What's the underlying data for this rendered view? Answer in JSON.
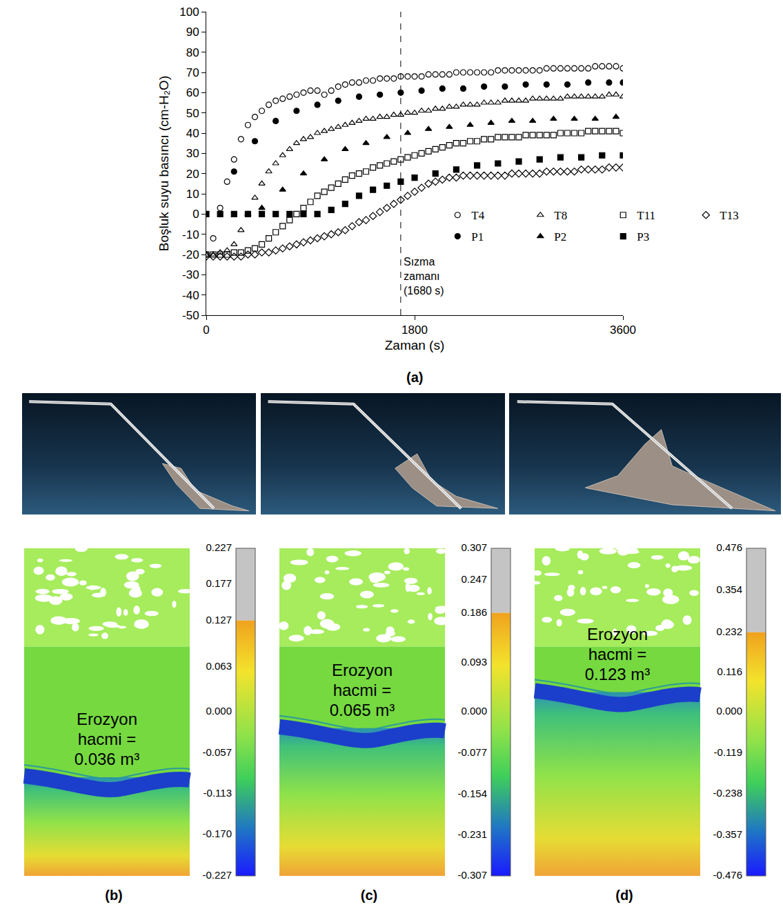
{
  "chart_data": {
    "type": "scatter",
    "x_label": "Zaman (s)",
    "y_label": "Boşluk suyu basıncı (cm-H₂O)",
    "panel_label": "(a)",
    "xlim": [
      0,
      3600
    ],
    "xticks": [
      0,
      1800,
      3600
    ],
    "ylim": [
      -50,
      100
    ],
    "yticks": [
      -50,
      -40,
      -30,
      -20,
      -10,
      0,
      10,
      20,
      30,
      40,
      50,
      60,
      70,
      80,
      90,
      100
    ],
    "grid": false,
    "legend": "lower right",
    "vline": {
      "x": 1680,
      "line_style": "dash",
      "label": [
        "Sızma",
        "zamanı",
        "(1680 s)"
      ]
    },
    "series": [
      {
        "name": "T4",
        "color": "#000000",
        "marker": "circle-open",
        "x": [
          0,
          60,
          120,
          180,
          240,
          300,
          360,
          420,
          480,
          540,
          600,
          660,
          720,
          780,
          840,
          900,
          960,
          1020,
          1080,
          1140,
          1200,
          1260,
          1320,
          1380,
          1440,
          1500,
          1560,
          1620,
          1680,
          1740,
          1800,
          1860,
          1920,
          1980,
          2040,
          2100,
          2160,
          2220,
          2280,
          2340,
          2400,
          2460,
          2520,
          2580,
          2640,
          2700,
          2760,
          2820,
          2880,
          2940,
          3000,
          3060,
          3120,
          3180,
          3240,
          3300,
          3360,
          3420,
          3480,
          3540,
          3600
        ],
        "values": [
          -20,
          -12,
          3,
          16,
          27,
          37,
          44,
          48,
          51,
          54,
          56,
          57,
          58,
          59,
          60,
          61,
          61,
          59,
          61,
          63,
          64,
          65,
          65,
          66,
          66,
          67,
          67,
          67,
          68,
          68,
          68,
          68,
          69,
          69,
          69,
          69,
          70,
          70,
          70,
          70,
          70,
          70,
          71,
          71,
          71,
          71,
          71,
          71,
          71,
          72,
          72,
          72,
          72,
          72,
          72,
          72,
          73,
          73,
          73,
          73,
          72
        ]
      },
      {
        "name": "T8",
        "color": "#000000",
        "marker": "triangle-up-open",
        "x": [
          0,
          60,
          120,
          180,
          240,
          300,
          360,
          420,
          480,
          540,
          600,
          660,
          720,
          780,
          840,
          900,
          960,
          1020,
          1080,
          1140,
          1200,
          1260,
          1320,
          1380,
          1440,
          1500,
          1560,
          1620,
          1680,
          1740,
          1800,
          1860,
          1920,
          1980,
          2040,
          2100,
          2160,
          2220,
          2280,
          2340,
          2400,
          2460,
          2520,
          2580,
          2640,
          2700,
          2760,
          2820,
          2880,
          2940,
          3000,
          3060,
          3120,
          3180,
          3240,
          3300,
          3360,
          3420,
          3480,
          3540,
          3600
        ],
        "values": [
          -20,
          -20,
          -19,
          -18,
          -15,
          -8,
          0,
          8,
          15,
          21,
          25,
          29,
          32,
          35,
          37,
          38,
          40,
          41,
          42,
          43,
          44,
          45,
          46,
          47,
          47,
          48,
          48,
          49,
          49,
          50,
          50,
          51,
          51,
          52,
          52,
          53,
          53,
          54,
          54,
          54,
          55,
          55,
          55,
          56,
          56,
          56,
          56,
          57,
          57,
          57,
          57,
          57,
          58,
          58,
          58,
          58,
          58,
          58,
          59,
          59,
          58
        ]
      },
      {
        "name": "T11",
        "color": "#000000",
        "marker": "square-open",
        "x": [
          0,
          60,
          120,
          180,
          240,
          300,
          360,
          420,
          480,
          540,
          600,
          660,
          720,
          780,
          840,
          900,
          960,
          1020,
          1080,
          1140,
          1200,
          1260,
          1320,
          1380,
          1440,
          1500,
          1560,
          1620,
          1680,
          1740,
          1800,
          1860,
          1920,
          1980,
          2040,
          2100,
          2160,
          2220,
          2280,
          2340,
          2400,
          2460,
          2520,
          2580,
          2640,
          2700,
          2760,
          2820,
          2880,
          2940,
          3000,
          3060,
          3120,
          3180,
          3240,
          3300,
          3360,
          3420,
          3480,
          3540,
          3600
        ],
        "values": [
          -20,
          -20,
          -20,
          -20,
          -19,
          -19,
          -18,
          -17,
          -15,
          -12,
          -9,
          -6,
          -3,
          0,
          3,
          6,
          9,
          11,
          13,
          15,
          17,
          19,
          20,
          21,
          23,
          24,
          25,
          26,
          27,
          28,
          29,
          30,
          31,
          32,
          33,
          34,
          35,
          35,
          36,
          36,
          37,
          37,
          38,
          38,
          38,
          38,
          39,
          39,
          39,
          39,
          39,
          40,
          40,
          40,
          40,
          41,
          41,
          41,
          41,
          41,
          40
        ]
      },
      {
        "name": "T13",
        "color": "#000000",
        "marker": "diamond-open",
        "x": [
          0,
          60,
          120,
          180,
          240,
          300,
          360,
          420,
          480,
          540,
          600,
          660,
          720,
          780,
          840,
          900,
          960,
          1020,
          1080,
          1140,
          1200,
          1260,
          1320,
          1380,
          1440,
          1500,
          1560,
          1620,
          1680,
          1740,
          1800,
          1860,
          1920,
          1980,
          2040,
          2100,
          2160,
          2220,
          2280,
          2340,
          2400,
          2460,
          2520,
          2580,
          2640,
          2700,
          2760,
          2820,
          2880,
          2940,
          3000,
          3060,
          3120,
          3180,
          3240,
          3300,
          3360,
          3420,
          3480,
          3540,
          3600
        ],
        "values": [
          -21,
          -21,
          -21,
          -21,
          -21,
          -21,
          -20,
          -20,
          -19,
          -19,
          -18,
          -17,
          -16,
          -15,
          -14,
          -13,
          -12,
          -11,
          -10,
          -9,
          -8,
          -6,
          -4,
          -3,
          -1,
          1,
          3,
          5,
          7,
          9,
          11,
          13,
          15,
          16,
          17,
          18,
          18,
          19,
          19,
          19,
          19,
          19,
          19,
          19,
          20,
          20,
          20,
          20,
          20,
          21,
          21,
          21,
          21,
          21,
          22,
          22,
          22,
          22,
          23,
          23,
          23
        ]
      },
      {
        "name": "P1",
        "color": "#000000",
        "marker": "circle",
        "x": [
          240,
          420,
          600,
          780,
          960,
          1140,
          1320,
          1500,
          1680,
          1860,
          2040,
          2220,
          2400,
          2580,
          2760,
          2940,
          3120,
          3300,
          3480,
          3600
        ],
        "values": [
          21,
          36,
          46,
          51,
          54,
          56,
          58,
          59,
          60,
          61,
          62,
          62,
          63,
          63,
          64,
          64,
          64,
          65,
          65,
          65
        ]
      },
      {
        "name": "P2",
        "color": "#000000",
        "marker": "triangle-up",
        "x": [
          480,
          660,
          840,
          1020,
          1200,
          1380,
          1560,
          1740,
          1920,
          2100,
          2280,
          2460,
          2640,
          2820,
          3000,
          3180,
          3360,
          3540
        ],
        "values": [
          3,
          12,
          20,
          27,
          32,
          35,
          38,
          40,
          42,
          43,
          44,
          45,
          46,
          46,
          47,
          47,
          47,
          48
        ]
      },
      {
        "name": "P3",
        "color": "#000000",
        "marker": "square",
        "x": [
          0,
          120,
          240,
          360,
          480,
          600,
          720,
          840,
          960,
          1080,
          1200,
          1320,
          1440,
          1560,
          1680,
          1800,
          1980,
          2160,
          2340,
          2520,
          2700,
          2880,
          3060,
          3240,
          3420,
          3600
        ],
        "values": [
          0,
          0,
          0,
          0,
          0,
          0,
          0,
          0,
          0,
          2,
          5,
          9,
          12,
          14,
          16,
          18,
          20,
          22,
          24,
          25,
          26,
          27,
          28,
          28,
          29,
          29
        ]
      }
    ]
  },
  "erosion_maps": [
    {
      "panel_label": "(b)",
      "erosion_volume": {
        "label": "Erozyon hacmi =",
        "value": 0.036,
        "unit": "m³"
      },
      "colorbar": {
        "range": [
          -0.227,
          0.227
        ],
        "saturation": 0.127,
        "ticks": [
          0.227,
          0.177,
          0.127,
          0.063,
          {
            "value": 0,
            "label": "0.000"
          },
          -0.057,
          -0.113,
          {
            "value": -0.17,
            "label": "-0.170"
          },
          -0.227
        ]
      }
    },
    {
      "panel_label": "(c)",
      "erosion_volume": {
        "label": "Erozyon hacmi =",
        "value": 0.065,
        "unit": "m³"
      },
      "colorbar": {
        "range": [
          -0.307,
          0.307
        ],
        "saturation": 0.186,
        "ticks": [
          0.307,
          0.247,
          0.186,
          0.093,
          {
            "value": 0,
            "label": "0.000"
          },
          -0.077,
          -0.154,
          -0.231,
          -0.307
        ]
      }
    },
    {
      "panel_label": "(d)",
      "erosion_volume": {
        "label": "Erozyon hacmi =",
        "value": 0.123,
        "unit": "m³"
      },
      "colorbar": {
        "range": [
          -0.476,
          0.476
        ],
        "saturation": 0.232,
        "ticks": [
          0.476,
          0.354,
          0.232,
          0.116,
          {
            "value": 0,
            "label": "0.000"
          },
          -0.119,
          -0.238,
          -0.357,
          -0.476
        ]
      }
    }
  ]
}
